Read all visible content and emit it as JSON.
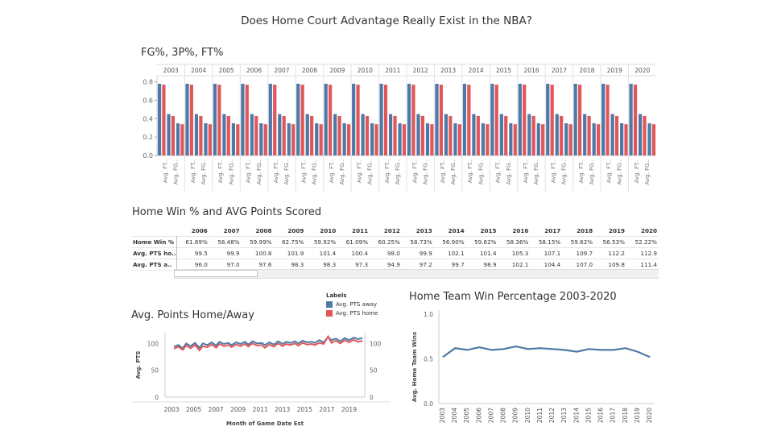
{
  "dashboard_title": "Does Home Court Advantage Really Exist in the NBA?",
  "colors": {
    "away": "#4e79a7",
    "home": "#e15759"
  },
  "chart_data": [
    {
      "type": "bar",
      "title": "FG%, 3P%, FT%",
      "years": [
        "2003",
        "2004",
        "2005",
        "2006",
        "2007",
        "2008",
        "2009",
        "2010",
        "2011",
        "2012",
        "2013",
        "2014",
        "2015",
        "2016",
        "2017",
        "2018",
        "2019",
        "2020"
      ],
      "metric_labels": [
        "Avg. FT..",
        "Avg. FG.."
      ],
      "yticks": [
        "0.0",
        "0.2",
        "0.4",
        "0.6",
        "0.8"
      ],
      "ylim": [
        0,
        0.85
      ],
      "legend_series": [
        "Avg. PTS away",
        "Avg. PTS home"
      ],
      "bar_pairs_per_year": {
        "away": [
          0.78,
          0.45,
          0.35
        ],
        "home": [
          0.77,
          0.43,
          0.34
        ]
      }
    },
    {
      "type": "table",
      "title": "Home Win % and AVG Points Scored",
      "columns": [
        "2006",
        "2007",
        "2008",
        "2009",
        "2010",
        "2011",
        "2012",
        "2013",
        "2014",
        "2015",
        "2016",
        "2017",
        "2018",
        "2019",
        "2020"
      ],
      "rows": [
        {
          "label": "Home Win %",
          "values": [
            "61.89%",
            "58.48%",
            "59.99%",
            "62.75%",
            "59.92%",
            "61.09%",
            "60.25%",
            "58.73%",
            "56.90%",
            "59.62%",
            "58.36%",
            "58.15%",
            "59.62%",
            "56.53%",
            "52.22%"
          ]
        },
        {
          "label": "Avg. PTS ho..",
          "values": [
            "99.5",
            "99.9",
            "100.8",
            "101.9",
            "101.4",
            "100.4",
            "98.0",
            "99.9",
            "102.1",
            "101.4",
            "105.3",
            "107.1",
            "109.7",
            "112.2",
            "112.9"
          ]
        },
        {
          "label": "Avg. PTS a..",
          "values": [
            "96.0",
            "97.0",
            "97.6",
            "98.3",
            "98.3",
            "97.3",
            "94.9",
            "97.2",
            "99.7",
            "98.9",
            "102.1",
            "104.4",
            "107.0",
            "109.8",
            "111.4"
          ]
        }
      ]
    },
    {
      "type": "line",
      "title": "Avg. Points Home/Away",
      "xlabel": "Month of Game Date Est",
      "ylabel": "Avg. PTS",
      "xticks": [
        "2003",
        "2005",
        "2007",
        "2009",
        "2011",
        "2013",
        "2015",
        "2017",
        "2019"
      ],
      "yticks_left": [
        "0",
        "50",
        "100"
      ],
      "yticks_right": [
        "0",
        "50",
        "100"
      ],
      "ylim": [
        0,
        120
      ],
      "xlim": [
        2003,
        2021
      ],
      "legend_title": "Labels",
      "series": [
        {
          "name": "Avg. PTS away",
          "color": "#4e79a7",
          "x": [
            2003.8,
            2004.2,
            2004.6,
            2004.9,
            2005.3,
            2005.7,
            2006.1,
            2006.4,
            2006.8,
            2007.2,
            2007.6,
            2007.9,
            2008.3,
            2008.7,
            2009.0,
            2009.4,
            2009.8,
            2010.2,
            2010.5,
            2010.9,
            2011.3,
            2011.7,
            2012.0,
            2012.4,
            2012.8,
            2013.2,
            2013.6,
            2013.9,
            2014.3,
            2014.7,
            2015.0,
            2015.4,
            2015.8,
            2016.2,
            2016.5,
            2016.9,
            2017.3,
            2017.7,
            2018.0,
            2018.4,
            2018.8,
            2019.2,
            2019.6,
            2020.0,
            2020.4,
            2020.8
          ],
          "y": [
            94,
            97,
            91,
            100,
            95,
            101,
            92,
            100,
            97,
            102,
            96,
            103,
            99,
            101,
            97,
            102,
            99,
            103,
            98,
            104,
            100,
            101,
            97,
            102,
            98,
            104,
            99,
            103,
            101,
            104,
            100,
            105,
            102,
            103,
            101,
            106,
            102,
            112,
            106,
            109,
            104,
            110,
            106,
            111,
            108,
            110
          ]
        },
        {
          "name": "Avg. PTS home",
          "color": "#e15759",
          "x": [
            2003.8,
            2004.2,
            2004.6,
            2004.9,
            2005.3,
            2005.7,
            2006.1,
            2006.4,
            2006.8,
            2007.2,
            2007.6,
            2007.9,
            2008.3,
            2008.7,
            2009.0,
            2009.4,
            2009.8,
            2010.2,
            2010.5,
            2010.9,
            2011.3,
            2011.7,
            2012.0,
            2012.4,
            2012.8,
            2013.2,
            2013.6,
            2013.9,
            2014.3,
            2014.7,
            2015.0,
            2015.4,
            2015.8,
            2016.2,
            2016.5,
            2016.9,
            2017.3,
            2017.7,
            2018.0,
            2018.4,
            2018.8,
            2019.2,
            2019.6,
            2020.0,
            2020.4,
            2020.8
          ],
          "y": [
            90,
            94,
            88,
            96,
            91,
            97,
            87,
            95,
            93,
            98,
            92,
            99,
            95,
            97,
            93,
            98,
            95,
            99,
            94,
            100,
            96,
            97,
            92,
            98,
            94,
            100,
            95,
            99,
            97,
            100,
            96,
            101,
            98,
            99,
            97,
            101,
            99,
            113,
            101,
            105,
            100,
            106,
            102,
            107,
            103,
            105
          ]
        }
      ]
    },
    {
      "type": "line",
      "title": "Home Team Win Percentage 2003-2020",
      "ylabel": "Avg. Home Team Wins",
      "x": [
        "2003",
        "2004",
        "2005",
        "2006",
        "2007",
        "2008",
        "2009",
        "2010",
        "2011",
        "2012",
        "2013",
        "2014",
        "2015",
        "2016",
        "2017",
        "2018",
        "2019",
        "2020"
      ],
      "y": [
        0.52,
        0.62,
        0.6,
        0.63,
        0.6,
        0.61,
        0.64,
        0.61,
        0.62,
        0.61,
        0.6,
        0.58,
        0.61,
        0.6,
        0.6,
        0.62,
        0.58,
        0.52
      ],
      "yticks": [
        "0.0",
        "0.5",
        "1.0"
      ],
      "ylim": [
        0,
        1.0
      ]
    }
  ]
}
